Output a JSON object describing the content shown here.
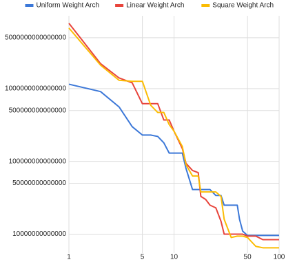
{
  "chart_data": {
    "type": "line",
    "log_x": true,
    "log_y": true,
    "grid": true,
    "legend": "top",
    "x": [
      1,
      2,
      3,
      4,
      5,
      6,
      7,
      8,
      9,
      10,
      12,
      13,
      15,
      17,
      18,
      20,
      22,
      25,
      28,
      30,
      35,
      40,
      42,
      45,
      50,
      60,
      70,
      100
    ],
    "xlim": [
      1,
      100
    ],
    "xticks": [
      1,
      5,
      10,
      50,
      100
    ],
    "ylim": [
      5500000000000,
      10000000000000000
    ],
    "yticks": [
      10000000000000,
      50000000000000,
      100000000000000,
      500000000000000,
      1000000000000000,
      5000000000000000
    ],
    "series": [
      {
        "name": "Uniform Weight Arch",
        "color": "#3c78d8",
        "values": [
          1150000000000000.0,
          910000000000000.0,
          560000000000000.0,
          300000000000000.0,
          230000000000000.0,
          230000000000000.0,
          220000000000000.0,
          180000000000000.0,
          130000000000000.0,
          130000000000000.0,
          130000000000000.0,
          80000000000000.0,
          41000000000000.0,
          41000000000000.0,
          41000000000000.0,
          41000000000000.0,
          41000000000000.0,
          34000000000000.0,
          34000000000000.0,
          25000000000000.0,
          25000000000000.0,
          25000000000000.0,
          16000000000000.0,
          11000000000000.0,
          9600000000000.0,
          9600000000000.0,
          9600000000000.0,
          9600000000000.0
        ]
      },
      {
        "name": "Linear Weight Arch",
        "color": "#e8453c",
        "values": [
          7900000000000000.0,
          2200000000000000.0,
          1400000000000000.0,
          1200000000000000.0,
          620000000000000.0,
          620000000000000.0,
          620000000000000.0,
          370000000000000.0,
          370000000000000.0,
          260000000000000.0,
          150000000000000.0,
          94000000000000.0,
          75000000000000.0,
          70000000000000.0,
          33000000000000.0,
          30000000000000.0,
          25000000000000.0,
          23000000000000.0,
          15000000000000.0,
          10000000000000.0,
          10000000000000.0,
          10000000000000.0,
          10000000000000.0,
          10000000000000.0,
          9400000000000.0,
          9400000000000.0,
          8400000000000.0,
          8400000000000.0
        ]
      },
      {
        "name": "Square Weight Arch",
        "color": "#fbbc04",
        "values": [
          6800000000000000.0,
          2100000000000000.0,
          1300000000000000.0,
          1260000000000000.0,
          1260000000000000.0,
          590000000000000.0,
          470000000000000.0,
          470000000000000.0,
          320000000000000.0,
          260000000000000.0,
          160000000000000.0,
          90000000000000.0,
          63000000000000.0,
          63000000000000.0,
          38000000000000.0,
          38000000000000.0,
          38000000000000.0,
          38000000000000.0,
          33000000000000.0,
          16000000000000.0,
          9000000000000.0,
          9400000000000.0,
          9400000000000.0,
          9400000000000.0,
          9000000000000.0,
          6800000000000.0,
          6500000000000.0,
          6500000000000.0
        ]
      }
    ]
  }
}
